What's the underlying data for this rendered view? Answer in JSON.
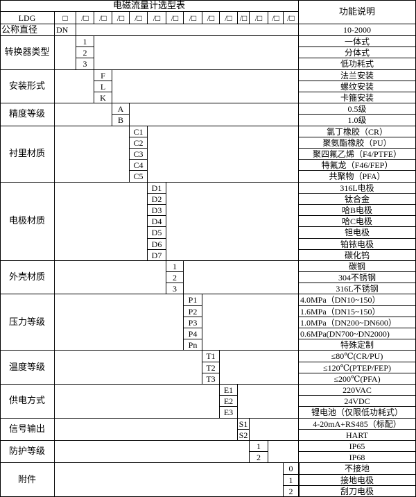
{
  "title": "电磁流量计选型表",
  "function_header": "功能说明",
  "model_row": {
    "prefix": "LDG",
    "boxes": [
      "□",
      "/□",
      "/□",
      "/□",
      "/□",
      "/□",
      "/□",
      "/□",
      "/□",
      "/□",
      "/□",
      "/□",
      "/□",
      "/□"
    ]
  },
  "nominal": {
    "label": "公称直径",
    "code": "DN",
    "desc": "10-2000"
  },
  "groups": [
    {
      "label": "转换器类型",
      "col": 2,
      "items": [
        {
          "code": "1",
          "desc": "一体式"
        },
        {
          "code": "2",
          "desc": "分体式"
        },
        {
          "code": "3",
          "desc": "低功耗式"
        }
      ]
    },
    {
      "label": "安装形式",
      "col": 3,
      "items": [
        {
          "code": "F",
          "desc": "法兰安装"
        },
        {
          "code": "L",
          "desc": "螺纹安装"
        },
        {
          "code": "K",
          "desc": "卡箍安装"
        }
      ]
    },
    {
      "label": "精度等级",
      "col": 4,
      "items": [
        {
          "code": "A",
          "desc": "0.5级"
        },
        {
          "code": "B",
          "desc": "1.0级"
        }
      ]
    },
    {
      "label": "衬里材质",
      "col": 5,
      "items": [
        {
          "code": "C1",
          "desc": "氯丁橡胶（CR）"
        },
        {
          "code": "C2",
          "desc": "聚氨酯橡胶（PU）"
        },
        {
          "code": "C3",
          "desc": "聚四氟乙烯（F4/PTFE）"
        },
        {
          "code": "C4",
          "desc": "特氟龙（F46/FEP）"
        },
        {
          "code": "C5",
          "desc": "共聚物（PFA）"
        }
      ]
    },
    {
      "label": "电极材质",
      "col": 6,
      "items": [
        {
          "code": "D1",
          "desc": "316L电极"
        },
        {
          "code": "D2",
          "desc": "钛合金"
        },
        {
          "code": "D3",
          "desc": "哈B电极"
        },
        {
          "code": "D4",
          "desc": "哈C电极"
        },
        {
          "code": "D5",
          "desc": "钽电极"
        },
        {
          "code": "D6",
          "desc": "铂铱电极"
        },
        {
          "code": "D7",
          "desc": "碳化钨"
        }
      ]
    },
    {
      "label": "外壳材质",
      "col": 7,
      "items": [
        {
          "code": "1",
          "desc": "碳钢"
        },
        {
          "code": "2",
          "desc": "304不锈钢"
        },
        {
          "code": "3",
          "desc": "316L不锈钢"
        }
      ]
    },
    {
      "label": "压力等级",
      "col": 8,
      "items": [
        {
          "code": "P1",
          "desc": "4.0MPa（DN10~150）",
          "left": true
        },
        {
          "code": "P2",
          "desc": "1.6MPa（DN15~150）",
          "left": true
        },
        {
          "code": "P3",
          "desc": "1.0MPa（DN200~DN600）",
          "left": true
        },
        {
          "code": "P4",
          "desc": "0.6MPa(DN700~DN2000)",
          "left": true
        },
        {
          "code": "Pn",
          "desc": "特殊定制"
        }
      ]
    },
    {
      "label": "温度等级",
      "col": 9,
      "items": [
        {
          "code": "T1",
          "desc": "≤80℃(CR/PU)"
        },
        {
          "code": "T2",
          "desc": "≤120℃(PTEP/FEP)"
        },
        {
          "code": "T3",
          "desc": "≤200℃(PFA)"
        }
      ]
    },
    {
      "label": "供电方式",
      "col": 10,
      "items": [
        {
          "code": "E1",
          "desc": "220VAC"
        },
        {
          "code": "E2",
          "desc": "24VDC"
        },
        {
          "code": "E3",
          "desc": "锂电池（仅限低功耗式）"
        }
      ]
    },
    {
      "label": "信号输出",
      "col": 11,
      "items": [
        {
          "code": "S1",
          "desc": "4-20mA+RS485（标配）"
        },
        {
          "code": "S2",
          "desc": "HART"
        }
      ]
    },
    {
      "label": "防护等级",
      "col": 12,
      "items": [
        {
          "code": "1",
          "desc": "IP65"
        },
        {
          "code": "2",
          "desc": "IP68"
        }
      ]
    },
    {
      "label": "附件",
      "col": 14,
      "items": [
        {
          "code": "0",
          "desc": "不接地"
        },
        {
          "code": "1",
          "desc": "接地电极"
        },
        {
          "code": "2",
          "desc": "刮刀电极"
        }
      ]
    }
  ]
}
